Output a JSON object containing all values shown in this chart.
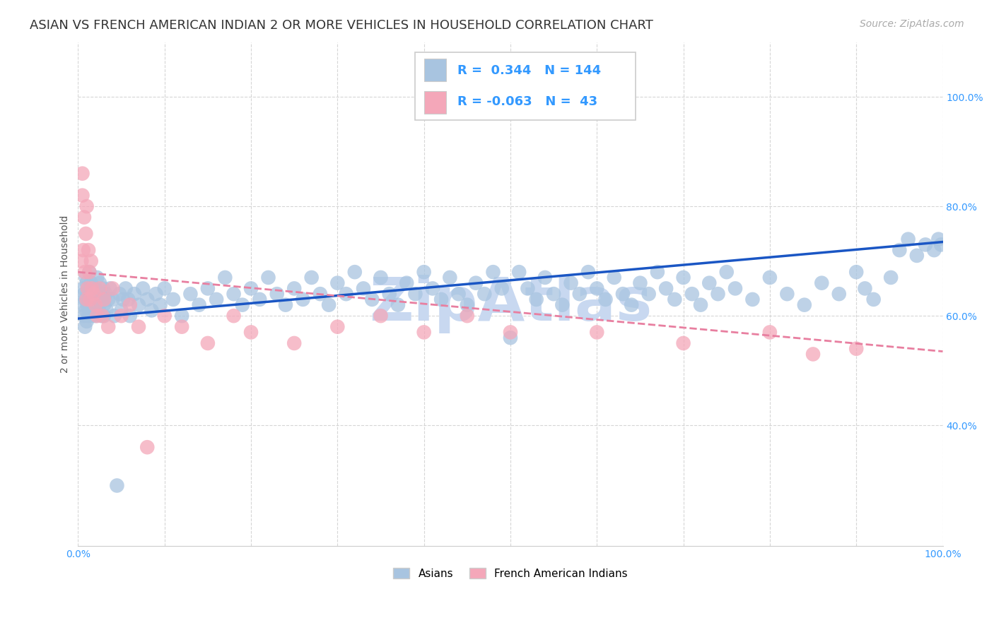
{
  "title": "ASIAN VS FRENCH AMERICAN INDIAN 2 OR MORE VEHICLES IN HOUSEHOLD CORRELATION CHART",
  "source": "Source: ZipAtlas.com",
  "ylabel": "2 or more Vehicles in Household",
  "xlim": [
    0.0,
    1.0
  ],
  "ylim": [
    0.18,
    1.1
  ],
  "x_ticks": [
    0.0,
    0.1,
    0.2,
    0.3,
    0.4,
    0.5,
    0.6,
    0.7,
    0.8,
    0.9,
    1.0
  ],
  "x_tick_labels": [
    "0.0%",
    "",
    "",
    "",
    "",
    "",
    "",
    "",
    "",
    "",
    "100.0%"
  ],
  "y_ticks": [
    0.4,
    0.6,
    0.8,
    1.0
  ],
  "y_tick_labels": [
    "40.0%",
    "60.0%",
    "80.0%",
    "100.0%"
  ],
  "asian_R": 0.344,
  "asian_N": 144,
  "french_R": -0.063,
  "french_N": 43,
  "asian_color": "#a8c4e0",
  "french_color": "#f4a7b9",
  "asian_line_color": "#1a56c4",
  "french_line_color": "#e87fa0",
  "watermark": "ZipAtlas",
  "watermark_color": "#c8d8f0",
  "background_color": "#ffffff",
  "legend_label_asian": "Asians",
  "legend_label_french": "French American Indians",
  "title_fontsize": 13,
  "axis_label_fontsize": 10,
  "tick_fontsize": 10,
  "source_fontsize": 10,
  "asian_x": [
    0.005,
    0.006,
    0.007,
    0.007,
    0.008,
    0.008,
    0.009,
    0.009,
    0.01,
    0.01,
    0.011,
    0.011,
    0.012,
    0.012,
    0.013,
    0.013,
    0.014,
    0.014,
    0.015,
    0.015,
    0.016,
    0.016,
    0.017,
    0.017,
    0.018,
    0.019,
    0.02,
    0.02,
    0.021,
    0.022,
    0.023,
    0.024,
    0.025,
    0.025,
    0.026,
    0.027,
    0.028,
    0.029,
    0.03,
    0.03,
    0.032,
    0.033,
    0.035,
    0.037,
    0.04,
    0.042,
    0.045,
    0.048,
    0.05,
    0.052,
    0.055,
    0.058,
    0.06,
    0.065,
    0.07,
    0.075,
    0.08,
    0.085,
    0.09,
    0.095,
    0.1,
    0.11,
    0.12,
    0.13,
    0.14,
    0.15,
    0.16,
    0.17,
    0.18,
    0.19,
    0.2,
    0.21,
    0.22,
    0.23,
    0.24,
    0.25,
    0.26,
    0.27,
    0.28,
    0.29,
    0.3,
    0.31,
    0.32,
    0.33,
    0.34,
    0.35,
    0.36,
    0.37,
    0.38,
    0.39,
    0.4,
    0.41,
    0.42,
    0.43,
    0.44,
    0.45,
    0.46,
    0.47,
    0.48,
    0.49,
    0.5,
    0.51,
    0.52,
    0.53,
    0.54,
    0.55,
    0.56,
    0.57,
    0.58,
    0.59,
    0.6,
    0.61,
    0.62,
    0.63,
    0.64,
    0.65,
    0.66,
    0.67,
    0.68,
    0.69,
    0.7,
    0.71,
    0.72,
    0.73,
    0.74,
    0.75,
    0.76,
    0.78,
    0.8,
    0.82,
    0.84,
    0.86,
    0.88,
    0.9,
    0.91,
    0.92,
    0.94,
    0.95,
    0.96,
    0.97,
    0.98,
    0.99,
    0.995,
    0.998
  ],
  "asian_y": [
    0.62,
    0.65,
    0.6,
    0.64,
    0.58,
    0.63,
    0.61,
    0.67,
    0.59,
    0.66,
    0.64,
    0.62,
    0.6,
    0.65,
    0.63,
    0.68,
    0.61,
    0.64,
    0.62,
    0.66,
    0.6,
    0.63,
    0.65,
    0.61,
    0.64,
    0.62,
    0.65,
    0.6,
    0.63,
    0.67,
    0.61,
    0.64,
    0.62,
    0.66,
    0.64,
    0.6,
    0.63,
    0.65,
    0.6,
    0.62,
    0.64,
    0.61,
    0.63,
    0.65,
    0.63,
    0.6,
    0.29,
    0.64,
    0.61,
    0.63,
    0.65,
    0.63,
    0.6,
    0.64,
    0.62,
    0.65,
    0.63,
    0.61,
    0.64,
    0.62,
    0.65,
    0.63,
    0.6,
    0.64,
    0.62,
    0.65,
    0.63,
    0.67,
    0.64,
    0.62,
    0.65,
    0.63,
    0.67,
    0.64,
    0.62,
    0.65,
    0.63,
    0.67,
    0.64,
    0.62,
    0.66,
    0.64,
    0.68,
    0.65,
    0.63,
    0.67,
    0.64,
    0.62,
    0.66,
    0.64,
    0.68,
    0.65,
    0.63,
    0.67,
    0.64,
    0.62,
    0.66,
    0.64,
    0.68,
    0.65,
    0.56,
    0.68,
    0.65,
    0.63,
    0.67,
    0.64,
    0.62,
    0.66,
    0.64,
    0.68,
    0.65,
    0.63,
    0.67,
    0.64,
    0.62,
    0.66,
    0.64,
    0.68,
    0.65,
    0.63,
    0.67,
    0.64,
    0.62,
    0.66,
    0.64,
    0.68,
    0.65,
    0.63,
    0.67,
    0.64,
    0.62,
    0.66,
    0.64,
    0.68,
    0.65,
    0.63,
    0.67,
    0.72,
    0.74,
    0.71,
    0.73,
    0.72,
    0.74,
    0.73
  ],
  "french_x": [
    0.004,
    0.005,
    0.005,
    0.006,
    0.007,
    0.008,
    0.009,
    0.01,
    0.01,
    0.011,
    0.012,
    0.013,
    0.014,
    0.015,
    0.016,
    0.018,
    0.02,
    0.022,
    0.025,
    0.028,
    0.03,
    0.035,
    0.04,
    0.05,
    0.06,
    0.07,
    0.08,
    0.1,
    0.12,
    0.15,
    0.18,
    0.2,
    0.25,
    0.3,
    0.35,
    0.4,
    0.45,
    0.5,
    0.6,
    0.7,
    0.8,
    0.85,
    0.9
  ],
  "french_y": [
    0.7,
    0.86,
    0.82,
    0.72,
    0.78,
    0.68,
    0.75,
    0.63,
    0.8,
    0.65,
    0.72,
    0.68,
    0.63,
    0.7,
    0.65,
    0.64,
    0.62,
    0.6,
    0.65,
    0.6,
    0.63,
    0.58,
    0.65,
    0.6,
    0.62,
    0.58,
    0.36,
    0.6,
    0.58,
    0.55,
    0.6,
    0.57,
    0.55,
    0.58,
    0.6,
    0.57,
    0.6,
    0.57,
    0.57,
    0.55,
    0.57,
    0.53,
    0.54
  ],
  "asian_line_x0": 0.0,
  "asian_line_x1": 1.0,
  "asian_line_y0": 0.595,
  "asian_line_y1": 0.735,
  "french_line_x0": 0.0,
  "french_line_x1": 1.0,
  "french_line_y0": 0.68,
  "french_line_y1": 0.535
}
